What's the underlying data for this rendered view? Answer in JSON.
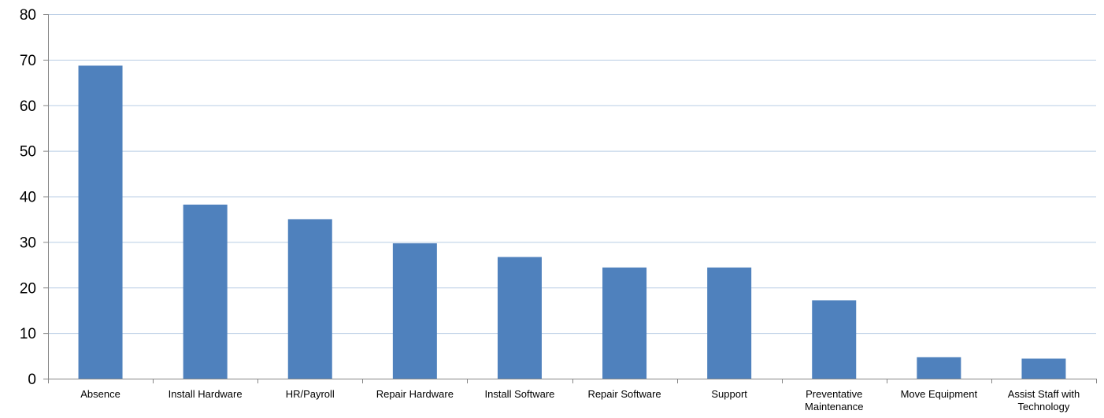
{
  "chart_data": {
    "type": "bar",
    "title": "",
    "xlabel": "",
    "ylabel": "",
    "categories": [
      "Absence",
      "Install Hardware",
      "HR/Payroll",
      "Repair Hardware",
      "Install Software",
      "Repair Software",
      "Support",
      "Preventative Maintenance",
      "Move Equipment",
      "Assist Staff with Technology"
    ],
    "category_label_lines": [
      [
        "Absence"
      ],
      [
        "Install Hardware"
      ],
      [
        "HR/Payroll"
      ],
      [
        "Repair Hardware"
      ],
      [
        "Install Software"
      ],
      [
        "Repair Software"
      ],
      [
        "Support"
      ],
      [
        "Preventative",
        "Maintenance"
      ],
      [
        "Move Equipment"
      ],
      [
        "Assist Staff with",
        "Technology"
      ]
    ],
    "values": [
      68.7,
      38.2,
      35.0,
      29.7,
      26.7,
      24.4,
      24.4,
      17.2,
      4.7,
      4.4
    ],
    "ylim": [
      0,
      80
    ],
    "yticks": [
      0,
      10,
      20,
      30,
      40,
      50,
      60,
      70,
      80
    ],
    "grid": true,
    "legend": "none",
    "colors": {
      "bar": "#4f81bd",
      "grid": "#b9cde5",
      "axis": "#868686"
    }
  }
}
